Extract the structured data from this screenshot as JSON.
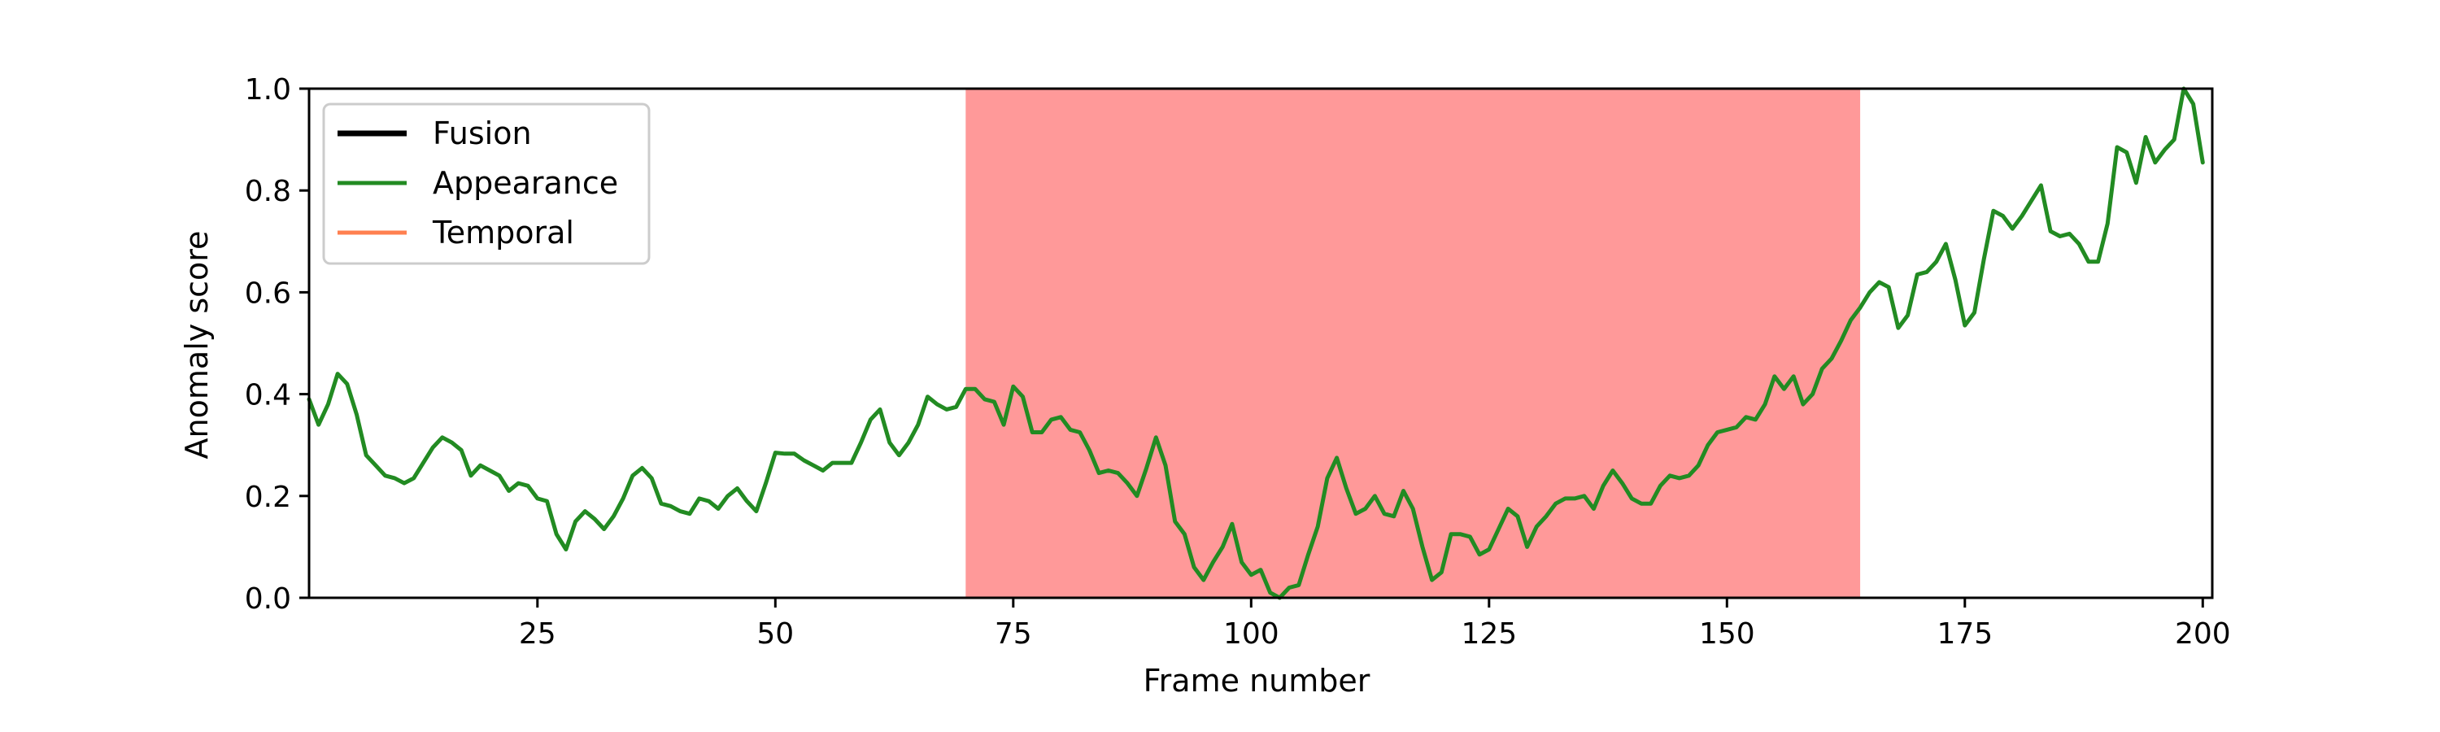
{
  "chart_data": {
    "type": "line",
    "title": "",
    "xlabel": "Frame number",
    "ylabel": "Anomaly score",
    "xlim": [
      1,
      201
    ],
    "ylim": [
      0,
      1.0
    ],
    "xticks": [
      25,
      50,
      75,
      100,
      125,
      150,
      175,
      200
    ],
    "yticks": [
      0.0,
      0.2,
      0.4,
      0.6,
      0.8,
      1.0
    ],
    "xtick_labels": [
      "25",
      "50",
      "75",
      "100",
      "125",
      "150",
      "175",
      "200"
    ],
    "ytick_labels": [
      "0.0",
      "0.2",
      "0.4",
      "0.6",
      "0.8",
      "1.0"
    ],
    "grid": false,
    "legend_position": "upper-left",
    "shaded_region": {
      "x_start": 70,
      "x_end": 164,
      "color": "#ff9999"
    },
    "series": [
      {
        "name": "Fusion",
        "color": "#000000",
        "values": []
      },
      {
        "name": "Appearance",
        "color": "#228b22",
        "x": [
          1,
          2,
          3,
          4,
          5,
          6,
          7,
          8,
          9,
          10,
          11,
          12,
          13,
          14,
          15,
          16,
          17,
          18,
          19,
          20,
          21,
          22,
          23,
          24,
          25,
          26,
          27,
          28,
          29,
          30,
          31,
          32,
          33,
          34,
          35,
          36,
          37,
          38,
          39,
          40,
          41,
          42,
          43,
          44,
          45,
          46,
          47,
          48,
          49,
          50,
          51,
          52,
          53,
          54,
          55,
          56,
          57,
          58,
          59,
          60,
          61,
          62,
          63,
          64,
          65,
          66,
          67,
          68,
          69,
          70,
          71,
          72,
          73,
          74,
          75,
          76,
          77,
          78,
          79,
          80,
          81,
          82,
          83,
          84,
          85,
          86,
          87,
          88,
          89,
          90,
          91,
          92,
          93,
          94,
          95,
          96,
          97,
          98,
          99,
          100,
          101,
          102,
          103,
          104,
          105,
          106,
          107,
          108,
          109,
          110,
          111,
          112,
          113,
          114,
          115,
          116,
          117,
          118,
          119,
          120,
          121,
          122,
          123,
          124,
          125,
          126,
          127,
          128,
          129,
          130,
          131,
          132,
          133,
          134,
          135,
          136,
          137,
          138,
          139,
          140,
          141,
          142,
          143,
          144,
          145,
          146,
          147,
          148,
          149,
          150,
          151,
          152,
          153,
          154,
          155,
          156,
          157,
          158,
          159,
          160,
          161,
          162,
          163,
          164,
          165,
          166,
          167,
          168,
          169,
          170,
          171,
          172,
          173,
          174,
          175,
          176,
          177,
          178,
          179,
          180,
          181,
          182,
          183,
          184,
          185,
          186,
          187,
          188,
          189,
          190,
          191,
          192,
          193,
          194,
          195,
          196,
          197,
          198,
          199,
          200
        ],
        "values": [
          0.39,
          0.34,
          0.38,
          0.44,
          0.42,
          0.36,
          0.28,
          0.26,
          0.24,
          0.235,
          0.225,
          0.235,
          0.265,
          0.295,
          0.315,
          0.305,
          0.29,
          0.24,
          0.26,
          0.25,
          0.24,
          0.21,
          0.225,
          0.22,
          0.195,
          0.19,
          0.125,
          0.095,
          0.15,
          0.17,
          0.155,
          0.135,
          0.16,
          0.195,
          0.24,
          0.255,
          0.235,
          0.185,
          0.18,
          0.17,
          0.165,
          0.195,
          0.19,
          0.175,
          0.2,
          0.215,
          0.19,
          0.17,
          0.225,
          0.285,
          0.283,
          0.283,
          0.27,
          0.26,
          0.25,
          0.265,
          0.265,
          0.265,
          0.305,
          0.35,
          0.37,
          0.305,
          0.28,
          0.305,
          0.34,
          0.395,
          0.38,
          0.37,
          0.375,
          0.41,
          0.41,
          0.39,
          0.385,
          0.34,
          0.415,
          0.395,
          0.325,
          0.325,
          0.35,
          0.355,
          0.33,
          0.325,
          0.29,
          0.245,
          0.25,
          0.245,
          0.225,
          0.2,
          0.255,
          0.315,
          0.26,
          0.15,
          0.125,
          0.06,
          0.035,
          0.07,
          0.1,
          0.145,
          0.07,
          0.045,
          0.055,
          0.01,
          0.0,
          0.02,
          0.025,
          0.085,
          0.14,
          0.235,
          0.275,
          0.215,
          0.165,
          0.175,
          0.2,
          0.165,
          0.16,
          0.21,
          0.175,
          0.1,
          0.035,
          0.05,
          0.125,
          0.125,
          0.12,
          0.085,
          0.095,
          0.135,
          0.175,
          0.16,
          0.1,
          0.14,
          0.16,
          0.185,
          0.195,
          0.195,
          0.2,
          0.175,
          0.22,
          0.25,
          0.225,
          0.195,
          0.185,
          0.185,
          0.22,
          0.24,
          0.235,
          0.24,
          0.26,
          0.3,
          0.325,
          0.33,
          0.335,
          0.355,
          0.35,
          0.38,
          0.435,
          0.41,
          0.435,
          0.38,
          0.4,
          0.45,
          0.47,
          0.505,
          0.545,
          0.57,
          0.6,
          0.62,
          0.61,
          0.53,
          0.555,
          0.635,
          0.64,
          0.66,
          0.695,
          0.625,
          0.535,
          0.56,
          0.665,
          0.76,
          0.75,
          0.725,
          0.75,
          0.78,
          0.81,
          0.72,
          0.71,
          0.715,
          0.695,
          0.66,
          0.66,
          0.735,
          0.885,
          0.875,
          0.815,
          0.905,
          0.855,
          0.88,
          0.9,
          1.0,
          0.97,
          0.855
        ]
      },
      {
        "name": "Temporal",
        "color": "#ff8050",
        "values": []
      }
    ]
  }
}
